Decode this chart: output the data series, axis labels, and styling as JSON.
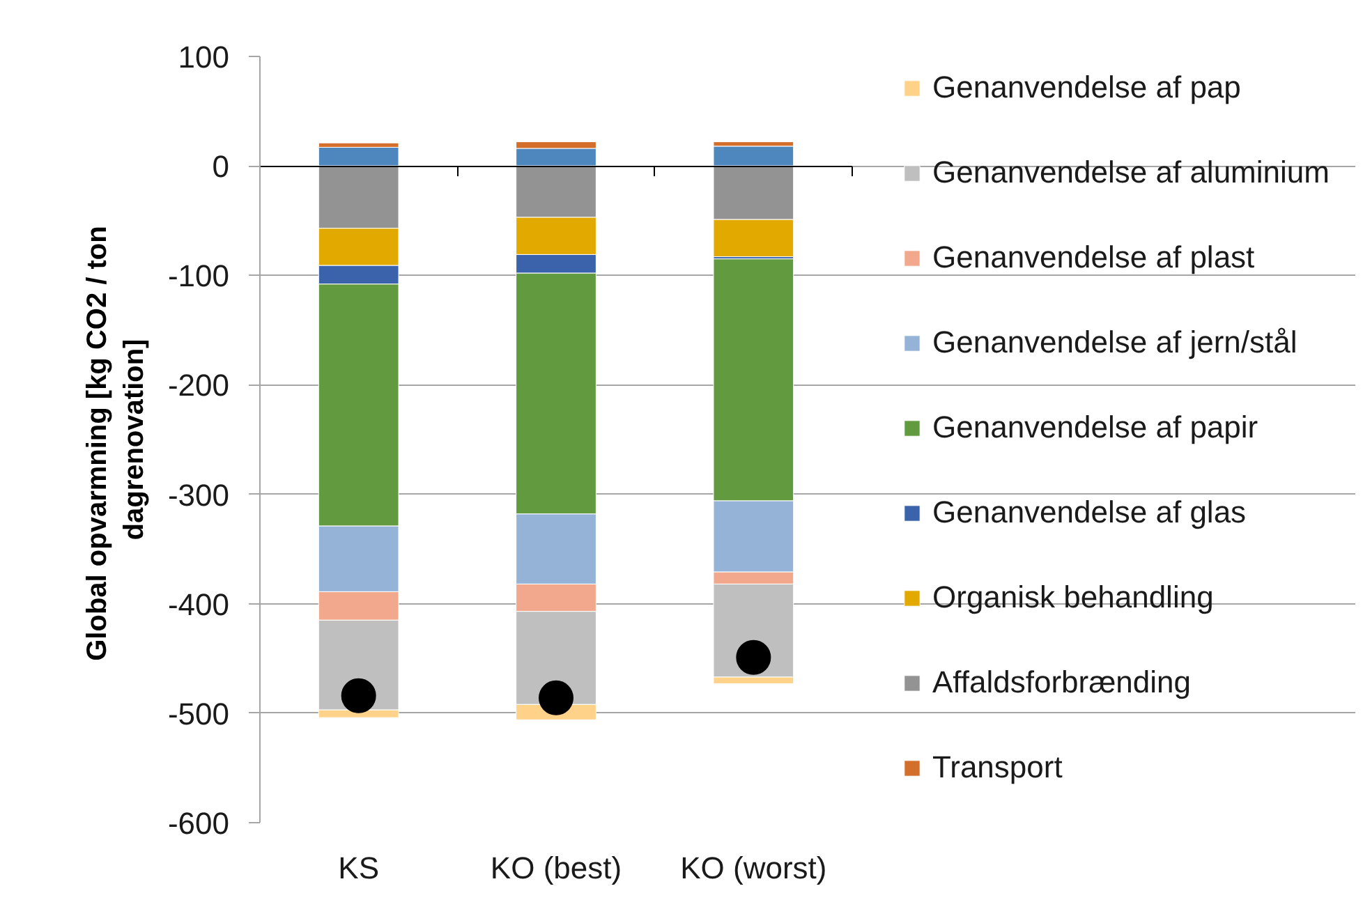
{
  "chart_data": {
    "type": "bar",
    "stacked": true,
    "categories": [
      "KS",
      "KO (best)",
      "KO (worst)"
    ],
    "ylabel": "Global opvarmning [kg CO2  / ton dagrenovation]",
    "ylim": [
      -600,
      100
    ],
    "yticks": [
      -600,
      -500,
      -400,
      -300,
      -200,
      -100,
      0,
      100
    ],
    "grid": "y",
    "legend": "right",
    "marker": "circle",
    "series": [
      {
        "color": "#4e87be",
        "values": [
          17,
          16,
          18
        ]
      },
      {
        "name": "Transport",
        "color": "#d36e2b",
        "values": [
          4,
          6,
          4
        ]
      },
      {
        "name": "Affaldsforbrænding",
        "color": "#939393",
        "values": [
          -57,
          -47,
          -49
        ]
      },
      {
        "name": "Organisk behandling",
        "color": "#e2aa00",
        "values": [
          -34,
          -34,
          -34
        ]
      },
      {
        "name": "Genanvendelse af glas",
        "color": "#3b63ac",
        "values": [
          -17,
          -17,
          -2
        ]
      },
      {
        "name": "Genanvendelse af papir",
        "color": "#629a3f",
        "values": [
          -221,
          -220,
          -221
        ]
      },
      {
        "name": "Genanvendelse af jern/stål",
        "color": "#95b3d7",
        "values": [
          -60,
          -64,
          -65
        ]
      },
      {
        "name": "Genanvendelse af plast",
        "color": "#f1a88c",
        "values": [
          -26,
          -25,
          -11
        ]
      },
      {
        "name": "Genanvendelse af aluminium",
        "color": "#bfbfbf",
        "values": [
          -82,
          -85,
          -85
        ]
      },
      {
        "name": "Genanvendelse af pap",
        "color": "#ffd28a",
        "values": [
          -7,
          -14,
          -6
        ]
      },
      {
        "type": "scatter",
        "color": "#000000",
        "x": [
          "KS",
          "KO (best)",
          "KO (worst)"
        ],
        "values": [
          -484,
          -486,
          -449
        ]
      }
    ]
  }
}
